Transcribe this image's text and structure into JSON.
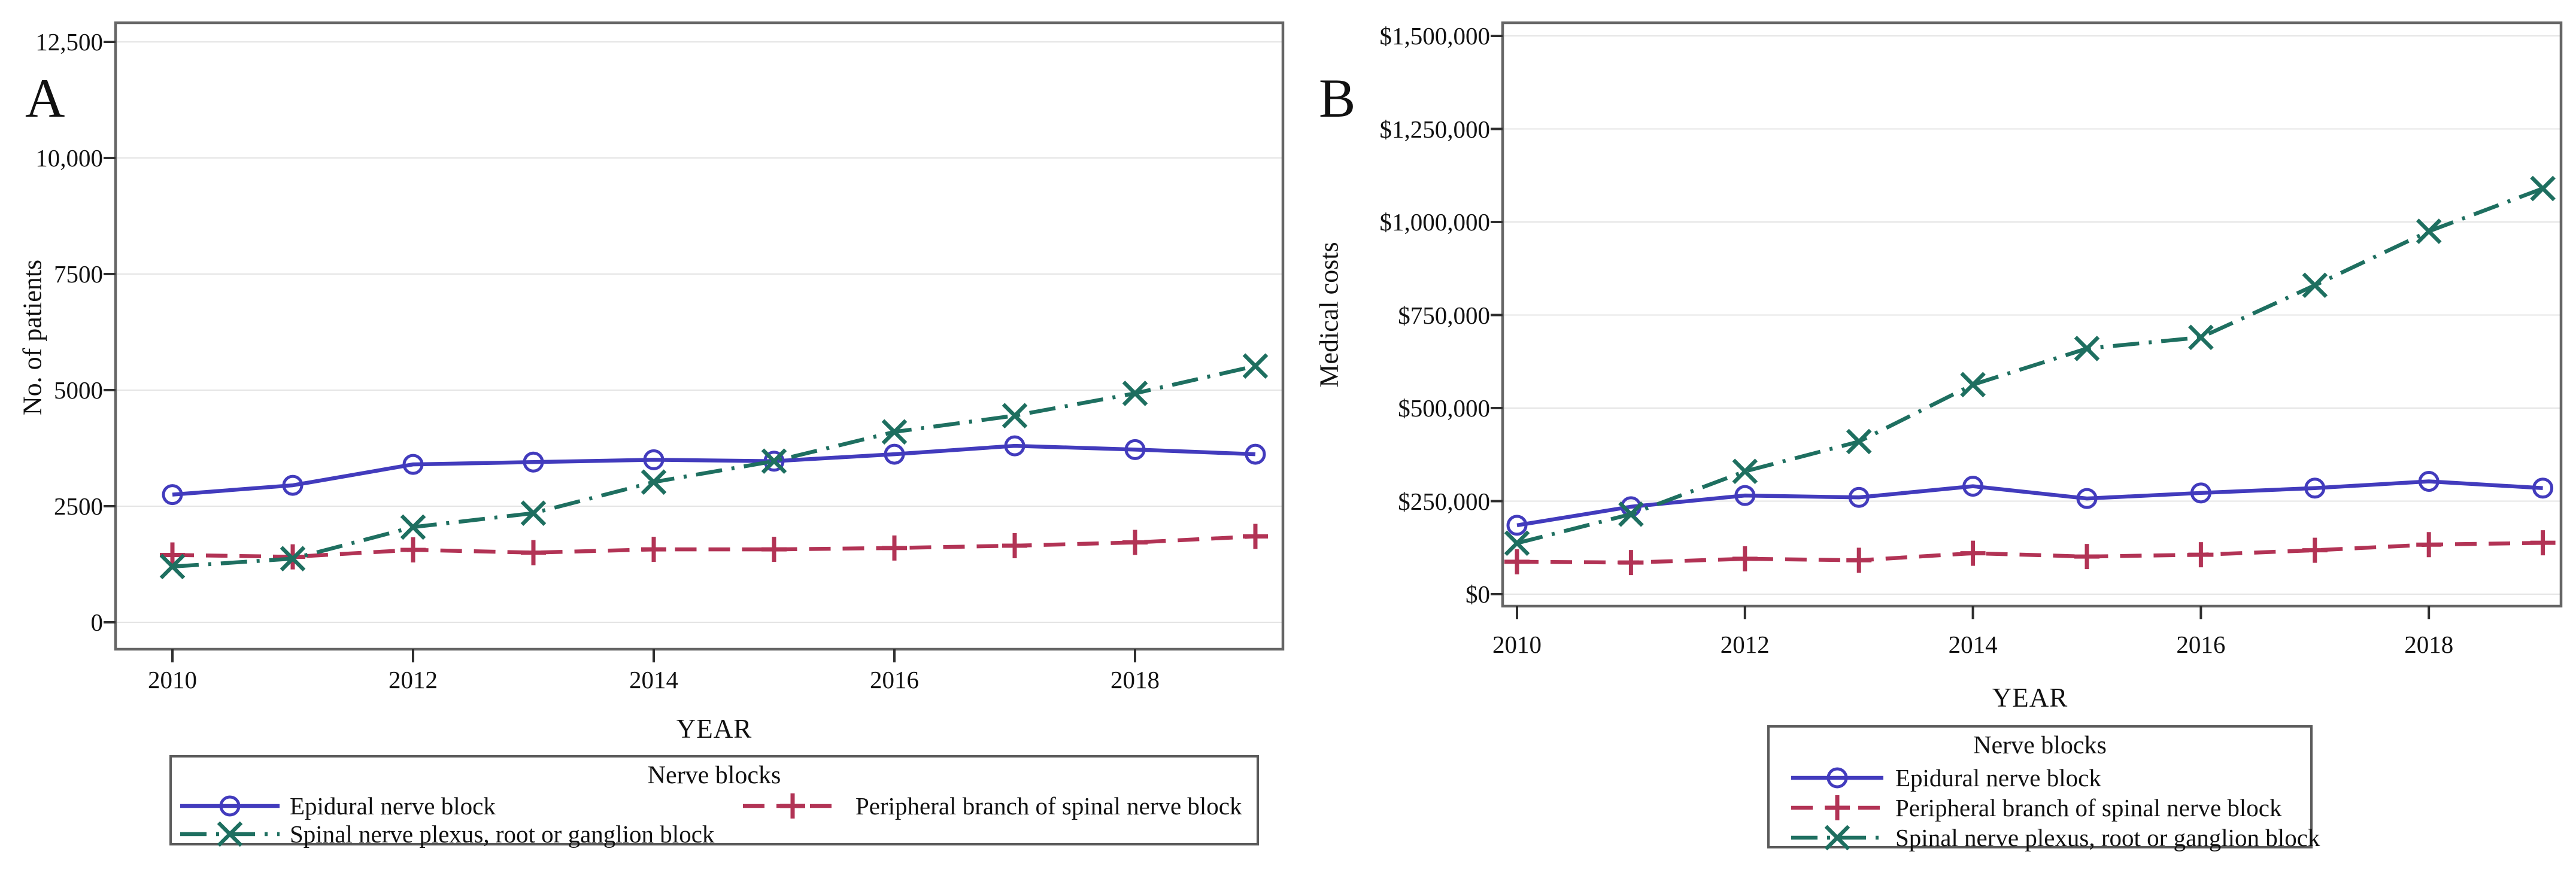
{
  "chart_data": [
    {
      "type": "line",
      "panel": "A",
      "xlabel": "YEAR",
      "ylabel": "No. of patients",
      "x": [
        2010,
        2011,
        2012,
        2013,
        2014,
        2015,
        2016,
        2017,
        2018,
        2019
      ],
      "xtick_years": [
        2010,
        2012,
        2014,
        2016,
        2018
      ],
      "xtick_labels": [
        "2010",
        "2012",
        "2014",
        "2016",
        "2018"
      ],
      "ytick_values": [
        0,
        2500,
        5000,
        7500,
        10000,
        12500
      ],
      "ytick_labels": [
        "0",
        "2500",
        "5000",
        "7500",
        "10,000",
        "12,500"
      ],
      "ylim": [
        0,
        13000
      ],
      "grid": "horizontal",
      "legend_position": "below",
      "legend_title": "Nerve blocks",
      "series": [
        {
          "name": "Epidural nerve block",
          "color": "#423bbd",
          "line": "solid",
          "marker": "circle",
          "values": [
            2750,
            2950,
            3400,
            3450,
            3500,
            3470,
            3620,
            3800,
            3720,
            3620
          ]
        },
        {
          "name": "Peripheral branch of spinal nerve block",
          "color": "#b23355",
          "line": "dashed",
          "marker": "plus",
          "values": [
            1450,
            1410,
            1560,
            1500,
            1570,
            1570,
            1600,
            1650,
            1720,
            1850
          ]
        },
        {
          "name": "Spinal nerve plexus, root or ganglion block",
          "color": "#1e6f60",
          "line": "dashdot",
          "marker": "x",
          "values": [
            1200,
            1370,
            2050,
            2350,
            3020,
            3470,
            4100,
            4450,
            4930,
            5520
          ]
        }
      ]
    },
    {
      "type": "line",
      "panel": "B",
      "xlabel": "YEAR",
      "ylabel": "Medical costs",
      "x": [
        2010,
        2011,
        2012,
        2013,
        2014,
        2015,
        2016,
        2017,
        2018,
        2019
      ],
      "xtick_years": [
        2010,
        2012,
        2014,
        2016,
        2018
      ],
      "xtick_labels": [
        "2010",
        "2012",
        "2014",
        "2016",
        "2018"
      ],
      "ytick_values": [
        0,
        250000,
        500000,
        750000,
        1000000,
        1250000,
        1500000
      ],
      "ytick_labels": [
        "$0",
        "$250,000",
        "$500,000",
        "$750,000",
        "$1,000,000",
        "$1,250,000",
        "$1,500,000"
      ],
      "ylim": [
        0,
        1540000
      ],
      "grid": "horizontal",
      "legend_position": "below",
      "legend_title": "Nerve blocks",
      "series": [
        {
          "name": "Epidural nerve block",
          "color": "#423bbd",
          "line": "solid",
          "marker": "circle",
          "values": [
            185000,
            235000,
            265000,
            260000,
            290000,
            257000,
            272000,
            285000,
            303000,
            285000
          ]
        },
        {
          "name": "Peripheral branch of spinal nerve block",
          "color": "#b23355",
          "line": "dashed",
          "marker": "plus",
          "values": [
            87000,
            85000,
            95000,
            91000,
            110000,
            101000,
            106000,
            118000,
            133000,
            138000
          ]
        },
        {
          "name": "Spinal nerve plexus, root or ganglion block",
          "color": "#1e6f60",
          "line": "dashdot",
          "marker": "x",
          "values": [
            137000,
            215000,
            330000,
            410000,
            563000,
            660000,
            690000,
            830000,
            975000,
            1090000
          ]
        }
      ]
    }
  ],
  "style_colors": {
    "frame": "#666666",
    "gridline": "#e4e4e4",
    "tick": "#2f2f2f"
  }
}
